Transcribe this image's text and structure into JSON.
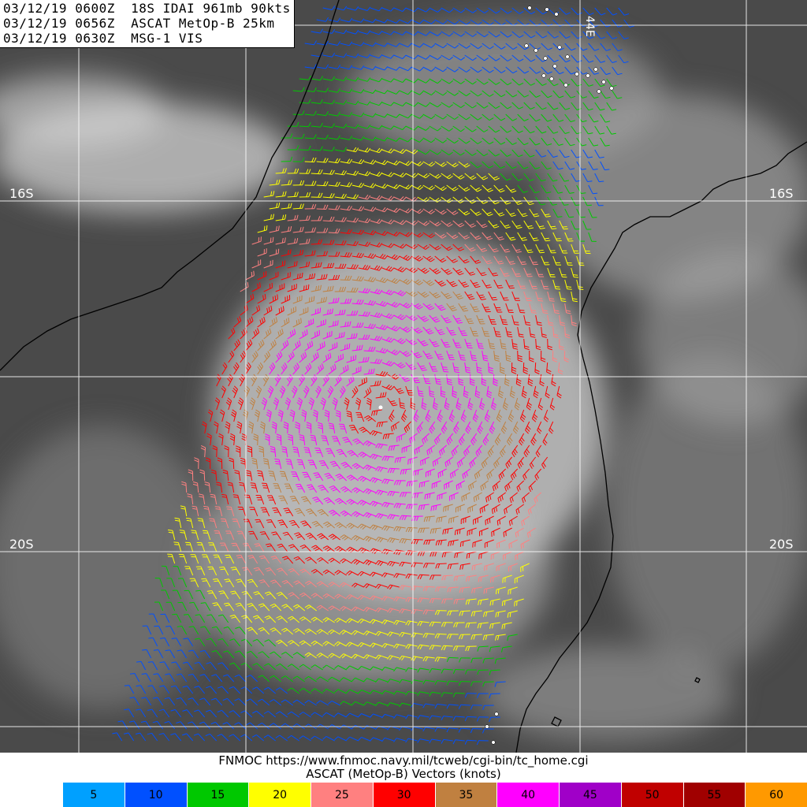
{
  "header": {
    "line1": "03/12/19 0600Z  18S IDAI 961mb 90kts",
    "line2": "03/12/19 0656Z  ASCAT MetOp-B 25km",
    "line3": "03/12/19 0630Z  MSG-1 VIS"
  },
  "lat_labels": {
    "left_16": "16S",
    "right_16": "16S",
    "left_20": "20S",
    "right_20": "20S"
  },
  "lon_label": "44E",
  "footer": {
    "source_line": "FNMOC https://www.fnmoc.navy.mil/tcweb/cgi-bin/tc_home.cgi",
    "vectors_line": "ASCAT (MetOp-B) Vectors (knots)"
  },
  "legend": [
    {
      "label": "5",
      "color": "#00a0ff"
    },
    {
      "label": "10",
      "color": "#0050ff"
    },
    {
      "label": "15",
      "color": "#00c800"
    },
    {
      "label": "20",
      "color": "#ffff00"
    },
    {
      "label": "25",
      "color": "#ff8080"
    },
    {
      "label": "30",
      "color": "#ff0000"
    },
    {
      "label": "35",
      "color": "#c08040"
    },
    {
      "label": "40",
      "color": "#ff00ff"
    },
    {
      "label": "45",
      "color": "#a000c8"
    },
    {
      "label": "50",
      "color": "#c00000"
    },
    {
      "label": "55",
      "color": "#a00000"
    },
    {
      "label": "60",
      "color": "#ff9900"
    }
  ]
}
